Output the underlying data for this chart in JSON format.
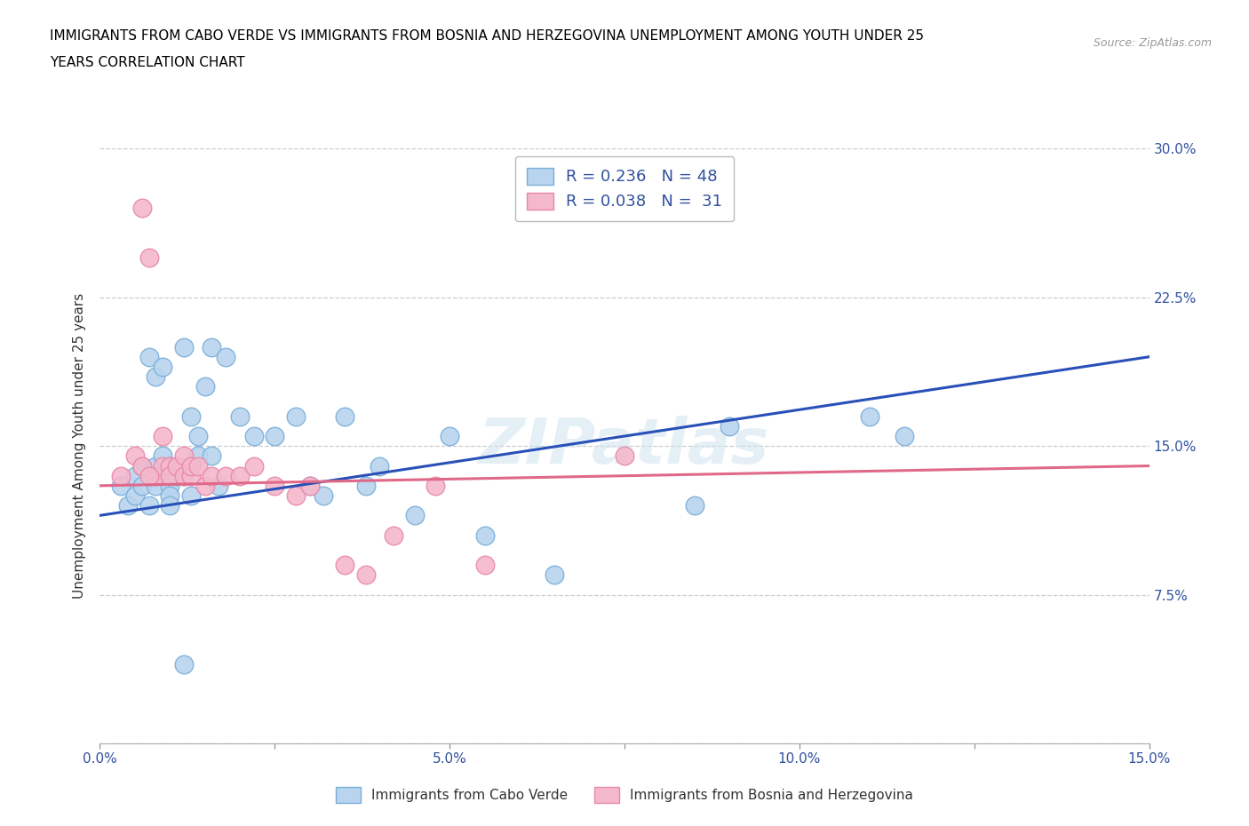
{
  "title_line1": "IMMIGRANTS FROM CABO VERDE VS IMMIGRANTS FROM BOSNIA AND HERZEGOVINA UNEMPLOYMENT AMONG YOUTH UNDER 25",
  "title_line2": "YEARS CORRELATION CHART",
  "source": "Source: ZipAtlas.com",
  "ylabel": "Unemployment Among Youth under 25 years",
  "xlim": [
    0.0,
    0.15
  ],
  "ylim": [
    0.0,
    0.3
  ],
  "xtick_vals": [
    0.0,
    0.025,
    0.05,
    0.075,
    0.1,
    0.125,
    0.15
  ],
  "xtick_labels": [
    "0.0%",
    "",
    "5.0%",
    "",
    "10.0%",
    "",
    "15.0%"
  ],
  "ytick_vals": [
    0.0,
    0.075,
    0.15,
    0.225,
    0.3
  ],
  "ytick_labels_right": [
    "",
    "7.5%",
    "15.0%",
    "22.5%",
    "30.0%"
  ],
  "legend_labels_bottom": [
    "Immigrants from Cabo Verde",
    "Immigrants from Bosnia and Herzegovina"
  ],
  "watermark": "ZIPatlas",
  "blue_color_face": "#b8d4ee",
  "blue_color_edge": "#7aaed8",
  "pink_color_face": "#f4b8cc",
  "pink_color_edge": "#e888a8",
  "blue_line_color": "#2850b8",
  "pink_line_color": "#e06888",
  "blue_x": [
    0.003,
    0.004,
    0.005,
    0.005,
    0.006,
    0.006,
    0.007,
    0.007,
    0.008,
    0.008,
    0.008,
    0.009,
    0.009,
    0.01,
    0.01,
    0.01,
    0.01,
    0.011,
    0.011,
    0.012,
    0.012,
    0.013,
    0.013,
    0.014,
    0.014,
    0.015,
    0.016,
    0.016,
    0.017,
    0.018,
    0.02,
    0.022,
    0.025,
    0.028,
    0.03,
    0.032,
    0.035,
    0.038,
    0.04,
    0.045,
    0.05,
    0.055,
    0.065,
    0.085,
    0.09,
    0.11,
    0.115,
    0.012
  ],
  "blue_y": [
    0.13,
    0.12,
    0.125,
    0.135,
    0.13,
    0.14,
    0.12,
    0.195,
    0.14,
    0.185,
    0.13,
    0.145,
    0.19,
    0.14,
    0.13,
    0.125,
    0.12,
    0.14,
    0.135,
    0.135,
    0.2,
    0.125,
    0.165,
    0.155,
    0.145,
    0.18,
    0.145,
    0.2,
    0.13,
    0.195,
    0.165,
    0.155,
    0.155,
    0.165,
    0.13,
    0.125,
    0.165,
    0.13,
    0.14,
    0.115,
    0.155,
    0.105,
    0.085,
    0.12,
    0.16,
    0.165,
    0.155,
    0.04
  ],
  "pink_x": [
    0.003,
    0.005,
    0.006,
    0.007,
    0.008,
    0.009,
    0.009,
    0.01,
    0.01,
    0.011,
    0.012,
    0.012,
    0.013,
    0.013,
    0.014,
    0.015,
    0.016,
    0.018,
    0.02,
    0.022,
    0.025,
    0.028,
    0.03,
    0.035,
    0.038,
    0.042,
    0.048,
    0.055,
    0.075,
    0.006,
    0.007
  ],
  "pink_y": [
    0.135,
    0.145,
    0.27,
    0.245,
    0.135,
    0.155,
    0.14,
    0.14,
    0.135,
    0.14,
    0.135,
    0.145,
    0.135,
    0.14,
    0.14,
    0.13,
    0.135,
    0.135,
    0.135,
    0.14,
    0.13,
    0.125,
    0.13,
    0.09,
    0.085,
    0.105,
    0.13,
    0.09,
    0.145,
    0.14,
    0.135
  ]
}
